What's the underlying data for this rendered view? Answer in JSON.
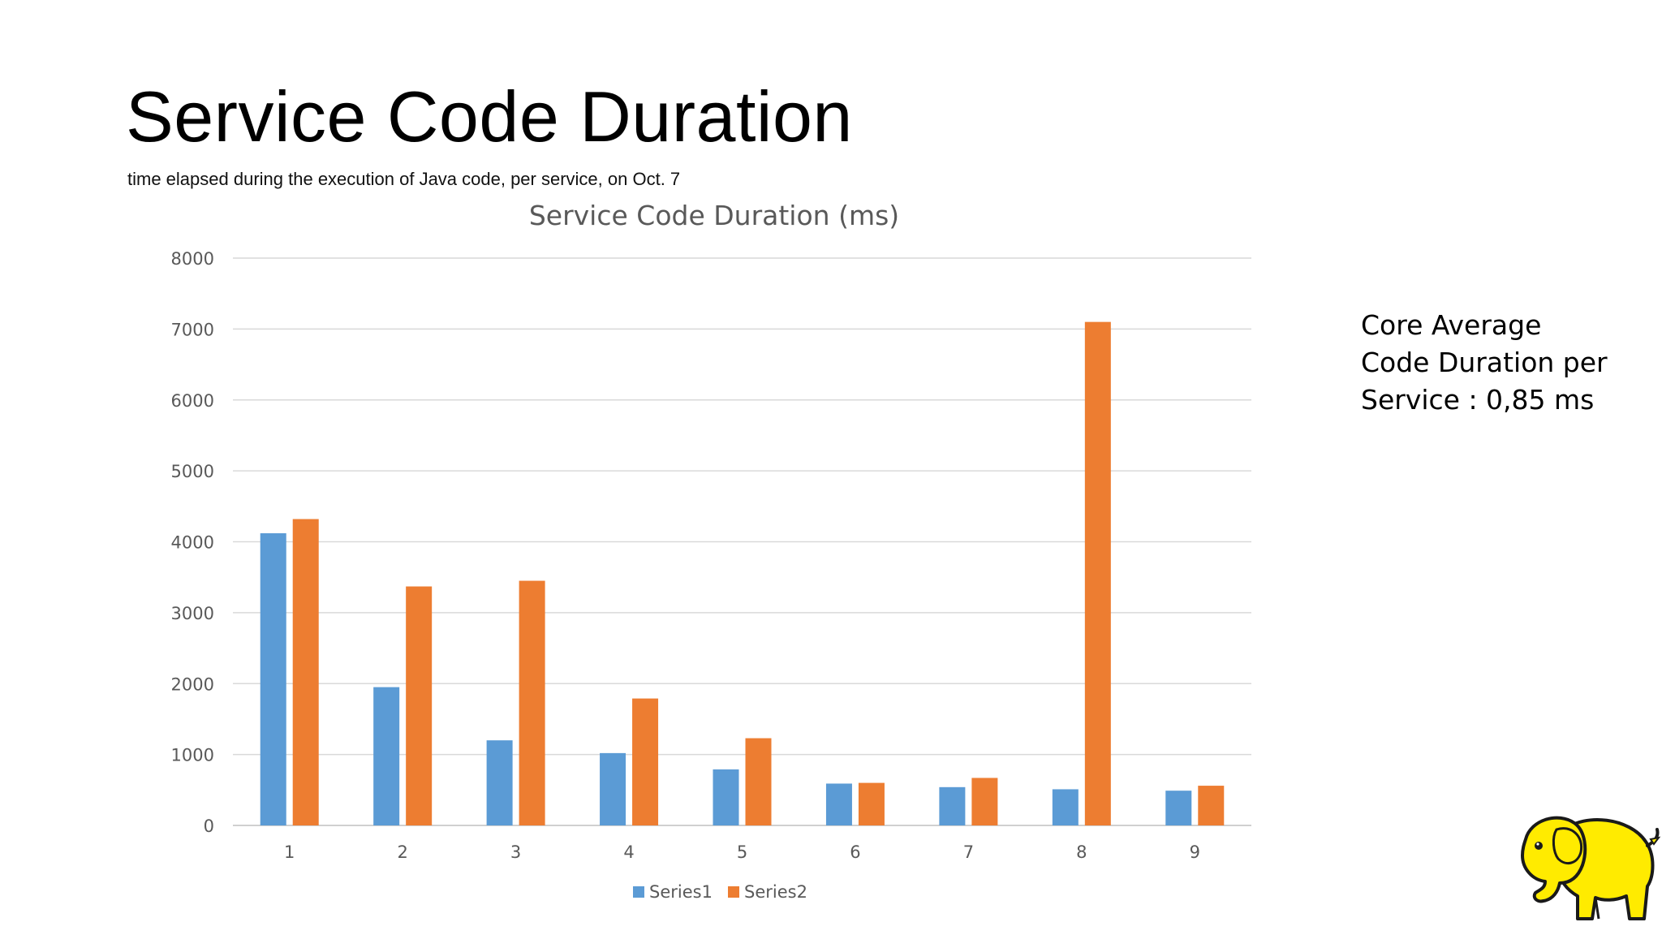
{
  "slide": {
    "title": "Service Code Duration",
    "subtitle": "time elapsed during the execution of Java code, per service, on Oct. 7",
    "note_lines": [
      "Core Average",
      "Code Duration per",
      "Service : 0,85 ms"
    ],
    "logo_icon": "yellow-elephant-logo-icon"
  },
  "chart_data": {
    "type": "bar",
    "title": "Service Code Duration (ms)",
    "xlabel": "",
    "ylabel": "",
    "ylim": [
      0,
      8000
    ],
    "yticks": [
      0,
      1000,
      2000,
      3000,
      4000,
      5000,
      6000,
      7000,
      8000
    ],
    "grid": true,
    "legend_position": "bottom",
    "categories": [
      "1",
      "2",
      "3",
      "4",
      "5",
      "6",
      "7",
      "8",
      "9"
    ],
    "series": [
      {
        "name": "Series1",
        "color": "#5B9BD5",
        "values": [
          4120,
          1950,
          1200,
          1020,
          790,
          590,
          540,
          510,
          490
        ]
      },
      {
        "name": "Series2",
        "color": "#ED7D31",
        "values": [
          4320,
          3370,
          3450,
          1790,
          1230,
          600,
          670,
          7100,
          560
        ]
      }
    ]
  }
}
